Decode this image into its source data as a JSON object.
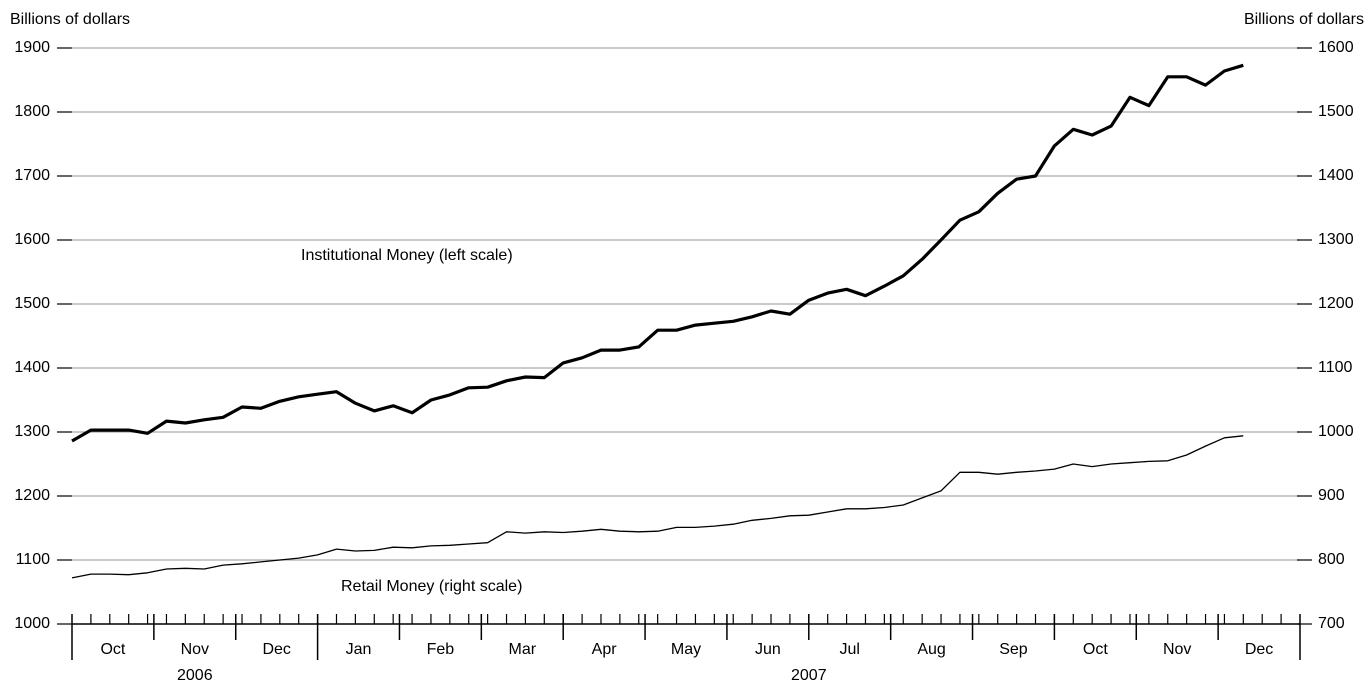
{
  "chart_data": {
    "type": "line",
    "y_label": "Billions of dollars",
    "y2_label": "Billions of dollars",
    "years": [
      {
        "year": "2006",
        "months": [
          "Oct",
          "Nov",
          "Dec"
        ]
      },
      {
        "year": "2007",
        "months": [
          "Jan",
          "Feb",
          "Mar",
          "Apr",
          "May",
          "Jun",
          "Jul",
          "Aug",
          "Sep",
          "Oct",
          "Nov",
          "Dec"
        ]
      }
    ],
    "ylim": [
      1000,
      1900
    ],
    "yticks": [
      1000,
      1100,
      1200,
      1300,
      1400,
      1500,
      1600,
      1700,
      1800,
      1900
    ],
    "y2lim": [
      700,
      1600
    ],
    "y2ticks": [
      700,
      800,
      900,
      1000,
      1100,
      1200,
      1300,
      1400,
      1500,
      1600
    ],
    "grid": true,
    "series": [
      {
        "name": "Institutional Money (left scale)",
        "color": "#000000",
        "line_width": 3.2,
        "axis": "y",
        "values": [
          1286,
          1303,
          1303,
          1303,
          1298,
          1317,
          1314,
          1319,
          1323,
          1339,
          1337,
          1348,
          1355,
          1359,
          1363,
          1345,
          1333,
          1341,
          1330,
          1350,
          1358,
          1369,
          1370,
          1380,
          1386,
          1385,
          1408,
          1416,
          1428,
          1428,
          1433,
          1459,
          1459,
          1467,
          1470,
          1473,
          1480,
          1489,
          1484,
          1506,
          1517,
          1523,
          1513,
          1528,
          1544,
          1570,
          1600,
          1631,
          1644,
          1673,
          1695,
          1700,
          1747,
          1773,
          1764,
          1778,
          1823,
          1810,
          1855,
          1855,
          1842,
          1864,
          1873
        ]
      },
      {
        "name": "Retail Money (right scale)",
        "color": "#000000",
        "line_width": 1.3,
        "axis": "y2",
        "values": [
          772,
          778,
          778,
          777,
          780,
          786,
          787,
          786,
          792,
          794,
          797,
          800,
          803,
          808,
          817,
          814,
          815,
          820,
          819,
          822,
          823,
          825,
          827,
          844,
          842,
          844,
          843,
          845,
          848,
          845,
          844,
          845,
          851,
          851,
          853,
          856,
          862,
          865,
          869,
          870,
          875,
          880,
          880,
          882,
          886,
          897,
          908,
          937,
          937,
          934,
          937,
          939,
          942,
          950,
          946,
          950,
          952,
          954,
          955,
          964,
          978,
          991,
          994
        ]
      }
    ]
  }
}
